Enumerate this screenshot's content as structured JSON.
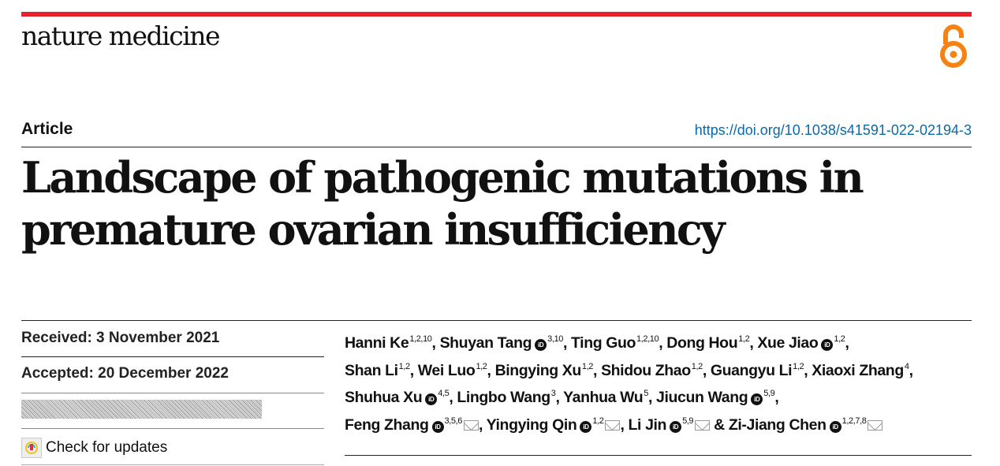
{
  "journal": "nature medicine",
  "article_type": "Article",
  "doi": "https://doi.org/10.1038/s41591-022-02194-3",
  "title_lines": [
    "Landscape of pathogenic mutations in",
    "premature ovarian insufficiency"
  ],
  "received": "Received: 3 November 2021",
  "accepted": "Accepted: 20 December 2022",
  "check_updates": "Check for updates",
  "colors": {
    "accent": "#e9202d",
    "link": "#0b6aa6",
    "open_access": "#f68212"
  },
  "author_lines": [
    [
      {
        "name": "Hanni Ke",
        "sup": "1,2,10",
        "sep": ", "
      },
      {
        "name": "Shuyan Tang",
        "orcid": true,
        "sup": "3,10",
        "sep": ", "
      },
      {
        "name": "Ting Guo",
        "sup": "1,2,10",
        "sep": ", "
      },
      {
        "name": "Dong Hou",
        "sup": "1,2",
        "sep": ", "
      },
      {
        "name": "Xue Jiao",
        "orcid": true,
        "sup": "1,2",
        "sep": ","
      }
    ],
    [
      {
        "name": "Shan Li",
        "sup": "1,2",
        "sep": ", "
      },
      {
        "name": "Wei Luo",
        "sup": "1,2",
        "sep": ", "
      },
      {
        "name": "Bingying Xu",
        "sup": "1,2",
        "sep": ", "
      },
      {
        "name": "Shidou Zhao",
        "sup": "1,2",
        "sep": ", "
      },
      {
        "name": "Guangyu Li",
        "sup": "1,2",
        "sep": ", "
      },
      {
        "name": "Xiaoxi Zhang",
        "sup": "4",
        "sep": ","
      }
    ],
    [
      {
        "name": "Shuhua Xu",
        "orcid": true,
        "sup": "4,5",
        "sep": ", "
      },
      {
        "name": "Lingbo Wang",
        "sup": "3",
        "sep": ", "
      },
      {
        "name": "Yanhua Wu",
        "sup": "5",
        "sep": ", "
      },
      {
        "name": "Jiucun Wang",
        "orcid": true,
        "sup": "5,9",
        "sep": ","
      }
    ],
    [
      {
        "name": "Feng Zhang",
        "orcid": true,
        "sup": "3,5,6",
        "email": true,
        "sep": ", "
      },
      {
        "name": "Yingying Qin",
        "orcid": true,
        "sup": "1,2",
        "email": true,
        "sep": ", "
      },
      {
        "name": "Li Jin",
        "orcid": true,
        "sup": "5,9",
        "email": true,
        "sep": " & "
      },
      {
        "name": "Zi-Jiang Chen",
        "orcid": true,
        "sup": "1,2,7,8",
        "email": true,
        "sep": ""
      }
    ]
  ]
}
